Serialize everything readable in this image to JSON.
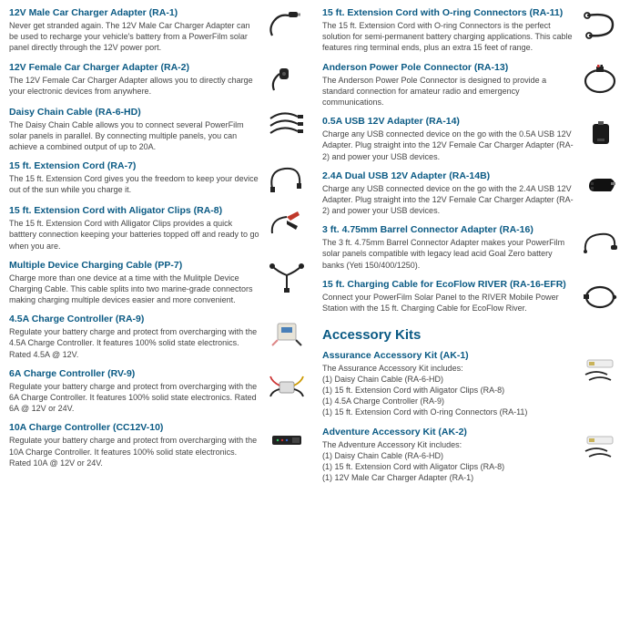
{
  "colors": {
    "heading": "#0a5a84",
    "body": "#444444",
    "background": "#ffffff"
  },
  "left": [
    {
      "title": "12V Male Car Charger Adapter (RA-1)",
      "desc": "Never get stranded again. The 12V Male Car Charger Adapter can be used to recharge your vehicle's battery from a PowerFilm solar panel directly through the 12V power port.",
      "thumb": "plug-male"
    },
    {
      "title": "12V Female Car Charger Adapter (RA-2)",
      "desc": "The 12V Female Car Charger Adapter allows you to directly charge your electronic devices from anywhere.",
      "thumb": "plug-female"
    },
    {
      "title": "Daisy Chain Cable (RA-6-HD)",
      "desc": "The Daisy Chain Cable allows you to connect several PowerFilm solar panels in parallel. By connecting multiple panels, you can achieve a combined output of up to 20A.",
      "thumb": "daisy-cable"
    },
    {
      "title": "15 ft. Extension Cord (RA-7)",
      "desc": "The 15 ft. Extension Cord gives you the freedom to keep your device out of the sun while you charge it.",
      "thumb": "ext-cord"
    },
    {
      "title": "15 ft. Extension Cord with Aligator Clips (RA-8)",
      "desc": "The 15 ft. Extension Cord with Alligator Clips provides a quick batttery connection keeping your batteries topped off and ready to go when you are.",
      "thumb": "alligator"
    },
    {
      "title": "Multiple Device Charging Cable (PP-7)",
      "desc": "Charge more than one device at a time with the Mulitple Device Charging Cable. This cable splits into two marine-grade connectors making charging multiple devices easier and more convenient.",
      "thumb": "split-cable"
    },
    {
      "title": "4.5A Charge Controller (RA-9)",
      "desc": "Regulate your battery charge and protect from overcharging with the 4.5A Charge Controller. It features 100% solid state electronics. Rated 4.5A @ 12V.",
      "thumb": "controller-small"
    },
    {
      "title": "6A Charge Controller (RV-9)",
      "desc": "Regulate your battery charge and protect from overcharging with the 6A Charge Controller. It features 100% solid state electronics. Rated 6A @ 12V or 24V.",
      "thumb": "controller-wires"
    },
    {
      "title": "10A Charge Controller (CC12V-10)",
      "desc": "Regulate your battery charge and protect from overcharging with the 10A Charge Controller. It features 100% solid state electronics. Rated 10A @ 12V or 24V.",
      "thumb": "controller-long"
    }
  ],
  "right": [
    {
      "title": "15 ft. Extension Cord with O-ring Connectors (RA-11)",
      "desc": "The 15 ft. Extension Cord with O-ring Connectors is the  perfect solution for semi-permanent battery charging applications. This cable features ring terminal ends, plus an extra 15 feet of range.",
      "thumb": "oring-cable"
    },
    {
      "title": "Anderson Power Pole Connector (RA-13)",
      "desc": "The Anderson Power Pole Connector is designed to provide a standard connection for amateur radio and emergency communications.",
      "thumb": "anderson"
    },
    {
      "title": "0.5A USB 12V Adapter (RA-14)",
      "desc": "Charge any USB connected device on the go with the 0.5A USB 12V Adapter. Plug straight into the 12V Female Car Charger Adapter (RA-2) and power your USB devices.",
      "thumb": "usb-block"
    },
    {
      "title": "2.4A Dual USB 12V Adapter (RA-14B)",
      "desc": "Charge any USB connected device on the go with the 2.4A USB 12V Adapter. Plug straight into the 12V Female Car Charger Adapter (RA-2) and power your USB devices.",
      "thumb": "usb-car"
    },
    {
      "title": "3 ft. 4.75mm Barrel Connector Adapter (RA-16)",
      "desc": "The 3 ft. 4.75mm Barrel Connector Adapter makes your PowerFilm solar panels compatible with legacy lead acid Goal Zero battery banks (Yeti 150/400/1250).",
      "thumb": "barrel"
    },
    {
      "title": "15 ft. Charging Cable for EcoFlow RIVER (RA-16-EFR)",
      "desc": "Connect your PowerFilm Solar Panel to the RIVER Mobile Power Station with the 15 ft. Charging Cable for EcoFlow River.",
      "thumb": "ecoflow"
    }
  ],
  "kitsHeader": "Accessory Kits",
  "kits": [
    {
      "title": "Assurance Accessory Kit (AK-1)",
      "intro": "The Assurance Accessory Kit includes:",
      "lines": [
        "(1) Daisy Chain Cable (RA-6-HD)",
        "(1) 15 ft. Extension Cord with Aligator Clips (RA-8)",
        "(1) 4.5A Charge Controller (RA-9)",
        "(1) 15 ft. Extension Cord with O-ring Connectors (RA-11)"
      ],
      "thumb": "kit"
    },
    {
      "title": "Adventure Accessory Kit (AK-2)",
      "intro": "The Adventure Accessory Kit includes:",
      "lines": [
        "(1) Daisy Chain Cable (RA-6-HD)",
        "(1) 15 ft. Extension Cord with Aligator Clips (RA-8)",
        "(1) 12V Male Car Charger Adapter (RA-1)"
      ],
      "thumb": "kit"
    }
  ]
}
